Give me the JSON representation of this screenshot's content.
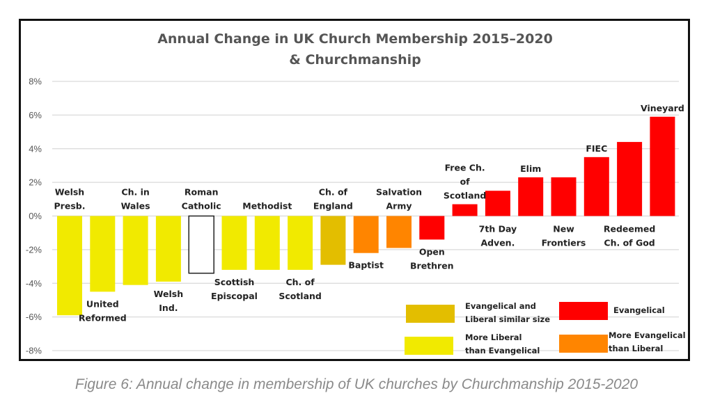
{
  "caption": "Figure 6: Annual change in membership of UK churches by Churchmanship 2015-2020",
  "chart_data": {
    "type": "bar",
    "title": [
      "Annual Change in UK Church Membership 2015–2020",
      "& Churchmanship"
    ],
    "xlabel": "",
    "ylabel": "",
    "ylim": [
      -8,
      8
    ],
    "yticks": [
      8,
      6,
      4,
      2,
      0,
      -2,
      -4,
      -6,
      -8
    ],
    "ytick_labels": [
      "8%",
      "6%",
      "4%",
      "2%",
      "0%",
      "-2%",
      "-4%",
      "-6%",
      "-8%"
    ],
    "grid": true,
    "categories": [
      [
        "Welsh",
        "Presb."
      ],
      [
        "United",
        "Reformed"
      ],
      [
        "Ch. in",
        "Wales"
      ],
      [
        "Welsh",
        "Ind."
      ],
      [
        "Roman",
        "Catholic"
      ],
      [
        "Scottish",
        "Episcopal"
      ],
      [
        "Methodist"
      ],
      [
        "Ch. of",
        "Scotland"
      ],
      [
        "Ch. of",
        "England"
      ],
      [
        "Baptist"
      ],
      [
        "Salvation",
        "Army"
      ],
      [
        "Open",
        "Brethren"
      ],
      [
        "Free Ch.",
        "of",
        "Scotland"
      ],
      [
        "7th Day",
        "Adven."
      ],
      [
        "Elim"
      ],
      [
        "New",
        "Frontiers"
      ],
      [
        "FIEC"
      ],
      [
        "Redeemed",
        "Ch. of God"
      ],
      [
        "Vineyard"
      ]
    ],
    "values": [
      -5.9,
      -4.5,
      -4.1,
      -3.9,
      -3.4,
      -3.2,
      -3.2,
      -3.2,
      -2.9,
      -2.2,
      -1.9,
      -1.4,
      0.7,
      1.5,
      2.3,
      2.3,
      3.5,
      4.4,
      5.9
    ],
    "groups": [
      "liberal",
      "liberal",
      "liberal",
      "liberal",
      "none",
      "liberal",
      "liberal",
      "liberal",
      "similar",
      "more_evangelical",
      "more_evangelical",
      "evangelical",
      "evangelical",
      "evangelical",
      "evangelical",
      "evangelical",
      "evangelical",
      "evangelical",
      "evangelical"
    ],
    "label_position": [
      "above",
      "below",
      "above",
      "below",
      "above",
      "below",
      "above",
      "below",
      "above",
      "below",
      "above",
      "below",
      "above",
      "below",
      "above",
      "below",
      "above",
      "below",
      "above"
    ],
    "legend": {
      "placement": "bottom-right",
      "entries": [
        {
          "key": "similar",
          "label": [
            "Evangelical and",
            "Liberal similar size"
          ],
          "color": "#E3BE00"
        },
        {
          "key": "evangelical",
          "label": [
            "Evangelical"
          ],
          "color": "#FF0000"
        },
        {
          "key": "liberal",
          "label": [
            "More Liberal",
            "than Evangelical"
          ],
          "color": "#F1EA00"
        },
        {
          "key": "more_evangelical",
          "label": [
            "More Evangelical",
            "than Liberal"
          ],
          "color": "#FF8500"
        }
      ]
    },
    "colors": {
      "liberal": "#F1EA00",
      "similar": "#E3BE00",
      "more_evangelical": "#FF8500",
      "evangelical": "#FF0000",
      "none": "#FFFFFF"
    }
  }
}
